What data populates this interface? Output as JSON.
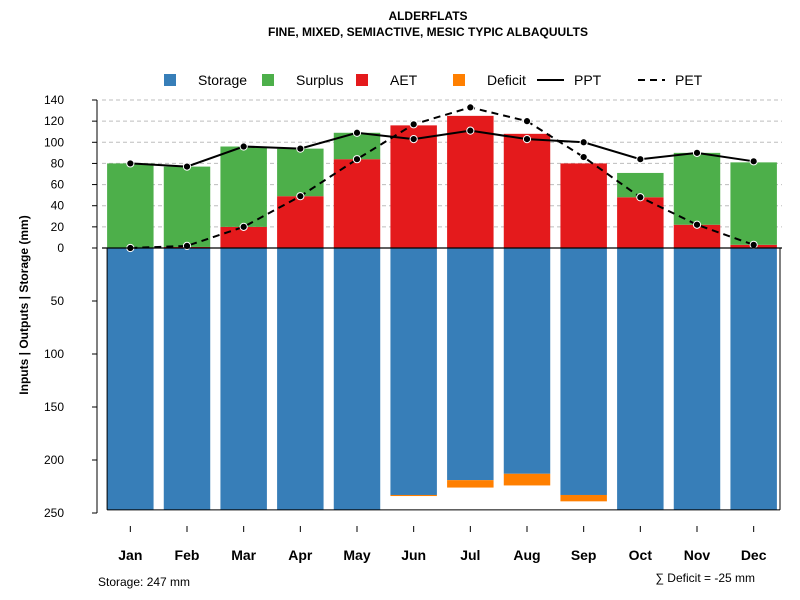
{
  "chart_data": {
    "type": "bar",
    "title": "ALDERFLATS",
    "subtitle": "FINE, MIXED, SEMIACTIVE, MESIC TYPIC ALBAQUULTS",
    "ylabel": "Inputs | Outputs | Storage     (mm)",
    "categories": [
      "Jan",
      "Feb",
      "Mar",
      "Apr",
      "May",
      "Jun",
      "Jul",
      "Aug",
      "Sep",
      "Oct",
      "Nov",
      "Dec"
    ],
    "ylim_top": [
      0,
      140
    ],
    "ylim_bottom": [
      0,
      250
    ],
    "yticks_top": [
      0,
      20,
      40,
      60,
      80,
      100,
      120,
      140
    ],
    "yticks_bottom": [
      50,
      100,
      150,
      200,
      250
    ],
    "ytick_labels_top": [
      "0",
      "20",
      "40",
      "60",
      "80",
      "100",
      "120",
      "140"
    ],
    "ytick_labels_bottom": [
      "50",
      "100",
      "150",
      "200",
      "250"
    ],
    "legend": [
      {
        "name": "Storage",
        "kind": "square",
        "color": "#377EB8"
      },
      {
        "name": "Surplus",
        "kind": "square",
        "color": "#4DAF4A"
      },
      {
        "name": "AET",
        "kind": "square",
        "color": "#E41A1C"
      },
      {
        "name": "Deficit",
        "kind": "square",
        "color": "#FF7F00"
      },
      {
        "name": "PPT",
        "kind": "solid"
      },
      {
        "name": "PET",
        "kind": "dashed"
      }
    ],
    "series": [
      {
        "name": "AET",
        "values": [
          0,
          1,
          20,
          49,
          84,
          116,
          125,
          108,
          80,
          48,
          22,
          3
        ]
      },
      {
        "name": "Surplus",
        "values": [
          80,
          76,
          76,
          45,
          25,
          0,
          0,
          0,
          0,
          23,
          68,
          78
        ]
      },
      {
        "name": "Storage",
        "values": [
          247,
          247,
          247,
          247,
          247,
          233,
          219,
          213,
          233,
          247,
          247,
          247
        ]
      },
      {
        "name": "Deficit",
        "values": [
          0,
          0,
          0,
          0,
          0,
          1,
          7,
          11,
          6,
          0,
          0,
          0
        ]
      },
      {
        "name": "PPT",
        "values": [
          80,
          77,
          96,
          94,
          109,
          103,
          111,
          103,
          100,
          84,
          90,
          82
        ]
      },
      {
        "name": "PET",
        "values": [
          0,
          2,
          20,
          49,
          84,
          117,
          133,
          120,
          86,
          48,
          22,
          3
        ]
      }
    ],
    "footer_left": "Storage: 247 mm",
    "footer_right": "∑ Deficit = -25 mm"
  }
}
